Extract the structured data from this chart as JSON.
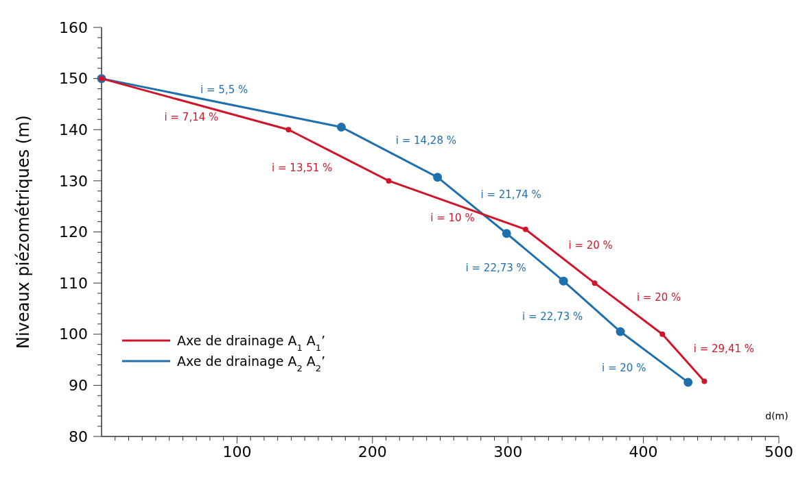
{
  "chart_data": {
    "type": "line",
    "xlabel": "d(m)",
    "ylabel": "Niveaux piézométriques (m)",
    "xlim": [
      0,
      500
    ],
    "ylim": [
      80,
      160
    ],
    "xticks": [
      {
        "value": 10,
        "label": null
      },
      {
        "value": 20,
        "label": null
      },
      {
        "value": 30,
        "label": null
      },
      {
        "value": 40,
        "label": null
      },
      {
        "value": 50,
        "label": null
      },
      {
        "value": 60,
        "label": null
      },
      {
        "value": 70,
        "label": null
      },
      {
        "value": 80,
        "label": null
      },
      {
        "value": 90,
        "label": null
      },
      100,
      {
        "value": 110,
        "label": null
      },
      {
        "value": 120,
        "label": null
      },
      {
        "value": 130,
        "label": null
      },
      {
        "value": 140,
        "label": null
      },
      {
        "value": 150,
        "label": null
      },
      {
        "value": 160,
        "label": null
      },
      {
        "value": 170,
        "label": null
      },
      {
        "value": 180,
        "label": null
      },
      {
        "value": 190,
        "label": null
      },
      200,
      {
        "value": 210,
        "label": null
      },
      {
        "value": 220,
        "label": null
      },
      {
        "value": 230,
        "label": null
      },
      {
        "value": 240,
        "label": null
      },
      {
        "value": 250,
        "label": null
      },
      {
        "value": 260,
        "label": null
      },
      {
        "value": 270,
        "label": null
      },
      {
        "value": 280,
        "label": null
      },
      {
        "value": 290,
        "label": null
      },
      300,
      {
        "value": 310,
        "label": null
      },
      {
        "value": 320,
        "label": null
      },
      {
        "value": 330,
        "label": null
      },
      {
        "value": 340,
        "label": null
      },
      {
        "value": 350,
        "label": null
      },
      {
        "value": 360,
        "label": null
      },
      {
        "value": 370,
        "label": null
      },
      {
        "value": 380,
        "label": null
      },
      {
        "value": 390,
        "label": null
      },
      400,
      {
        "value": 410,
        "label": null
      },
      {
        "value": 420,
        "label": null
      },
      {
        "value": 430,
        "label": null
      },
      {
        "value": 440,
        "label": null
      },
      {
        "value": 450,
        "label": null
      },
      {
        "value": 460,
        "label": null
      },
      {
        "value": 470,
        "label": null
      },
      {
        "value": 480,
        "label": null
      },
      {
        "value": 490,
        "label": null
      },
      500
    ],
    "yticks": [
      80,
      {
        "value": 82,
        "label": null
      },
      {
        "value": 84,
        "label": null
      },
      {
        "value": 86,
        "label": null
      },
      {
        "value": 88,
        "label": null
      },
      90,
      {
        "value": 92,
        "label": null
      },
      {
        "value": 94,
        "label": null
      },
      {
        "value": 96,
        "label": null
      },
      {
        "value": 98,
        "label": null
      },
      100,
      {
        "value": 102,
        "label": null
      },
      {
        "value": 104,
        "label": null
      },
      {
        "value": 106,
        "label": null
      },
      {
        "value": 108,
        "label": null
      },
      110,
      {
        "value": 112,
        "label": null
      },
      {
        "value": 114,
        "label": null
      },
      {
        "value": 116,
        "label": null
      },
      {
        "value": 118,
        "label": null
      },
      120,
      {
        "value": 122,
        "label": null
      },
      {
        "value": 124,
        "label": null
      },
      {
        "value": 126,
        "label": null
      },
      {
        "value": 128,
        "label": null
      },
      130,
      {
        "value": 132,
        "label": null
      },
      {
        "value": 134,
        "label": null
      },
      {
        "value": 136,
        "label": null
      },
      {
        "value": 138,
        "label": null
      },
      140,
      {
        "value": 142,
        "label": null
      },
      {
        "value": 144,
        "label": null
      },
      {
        "value": 146,
        "label": null
      },
      {
        "value": 148,
        "label": null
      },
      150,
      {
        "value": 152,
        "label": null
      },
      {
        "value": 154,
        "label": null
      },
      {
        "value": 156,
        "label": null
      },
      {
        "value": 158,
        "label": null
      },
      160
    ],
    "grid": false,
    "legend": "bottom left",
    "marker": "circle",
    "line_style": "solid",
    "series": [
      {
        "name": "Axe de drainage A$_{1}$ A$_{1}$’",
        "color": "#d0152a",
        "x": [
          0,
          138,
          212,
          313,
          364,
          414,
          445
        ],
        "values": [
          150,
          140,
          130,
          120.5,
          110,
          100,
          90.8
        ]
      },
      {
        "name": "Axe de drainage A$_{2}$ A$_{2}$’",
        "color": "#1f6fad",
        "x": [
          0,
          177,
          248,
          299,
          341,
          383,
          433
        ],
        "values": [
          150,
          140.5,
          130.7,
          119.7,
          110.4,
          100.5,
          90.6
        ]
      }
    ],
    "annotations": [
      {
        "text": "i = 5,5 %",
        "x": 88.5,
        "y": 145.25
      },
      {
        "text": "i = 7,14 %",
        "x": 69,
        "y": 145
      },
      {
        "text": "i = 14,28 %",
        "x": 212.5,
        "y": 135.6
      },
      {
        "text": "i = 13,51 %",
        "x": 175,
        "y": 135
      },
      {
        "text": "i = 21,74 %",
        "x": 273.5,
        "y": 125.2
      },
      {
        "text": "i = 10 %",
        "x": 262.5,
        "y": 125.25
      },
      {
        "text": "i = 22,73 %",
        "x": 320,
        "y": 115.05
      },
      {
        "text": "i = 20 %",
        "x": 338.5,
        "y": 115.25
      },
      {
        "text": "i = 20 %",
        "x": 389,
        "y": 105.1
      },
      {
        "text": "i = 22,73 %",
        "x": 362,
        "y": 105.45
      },
      {
        "text": "i = 29,41 %",
        "x": 429.5,
        "y": 95.4
      },
      {
        "text": "i = 20 %",
        "x": 408,
        "y": 95.55
      }
    ]
  }
}
